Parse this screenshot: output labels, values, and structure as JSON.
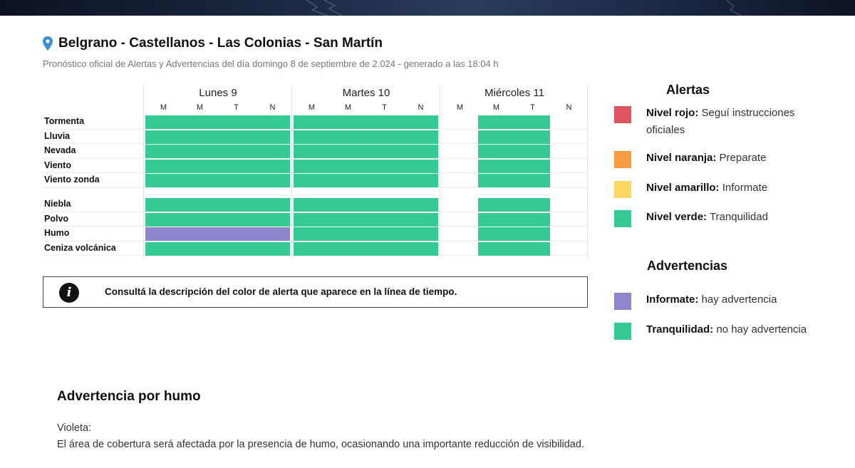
{
  "header": {
    "title": "Belgrano - Castellanos - Las Colonias - San Martín",
    "subtitle": "Pronóstico oficial de Alertas y Advertencias del día domingo 8 de septiembre de 2.024 - generado a las 18:04 h"
  },
  "colors": {
    "rojo": "#dd5463",
    "naranja": "#f59b42",
    "amarillo": "#fdd663",
    "verde": "#35c994",
    "violeta": "#8d86cb"
  },
  "timeline": {
    "days": [
      {
        "label": "Lunes 9",
        "slots": [
          "M",
          "M",
          "T",
          "N"
        ]
      },
      {
        "label": "Martes 10",
        "slots": [
          "M",
          "M",
          "T",
          "N"
        ]
      },
      {
        "label": "Miércoles 11",
        "slots": [
          "M",
          "M",
          "T",
          "N"
        ]
      }
    ],
    "alert_rows": [
      {
        "label": "Tormenta",
        "cells": [
          "verde",
          "verde",
          "verde",
          "verde",
          "verde",
          "verde",
          "verde",
          "verde",
          null,
          "verde",
          "verde",
          null
        ]
      },
      {
        "label": "Lluvia",
        "cells": [
          "verde",
          "verde",
          "verde",
          "verde",
          "verde",
          "verde",
          "verde",
          "verde",
          null,
          "verde",
          "verde",
          null
        ]
      },
      {
        "label": "Nevada",
        "cells": [
          "verde",
          "verde",
          "verde",
          "verde",
          "verde",
          "verde",
          "verde",
          "verde",
          null,
          "verde",
          "verde",
          null
        ]
      },
      {
        "label": "Viento",
        "cells": [
          "verde",
          "verde",
          "verde",
          "verde",
          "verde",
          "verde",
          "verde",
          "verde",
          null,
          "verde",
          "verde",
          null
        ]
      },
      {
        "label": "Viento zonda",
        "cells": [
          "verde",
          "verde",
          "verde",
          "verde",
          "verde",
          "verde",
          "verde",
          "verde",
          null,
          "verde",
          "verde",
          null
        ]
      }
    ],
    "warning_rows": [
      {
        "label": "Niebla",
        "cells": [
          "verde",
          "verde",
          "verde",
          "verde",
          "verde",
          "verde",
          "verde",
          "verde",
          null,
          "verde",
          "verde",
          null
        ]
      },
      {
        "label": "Polvo",
        "cells": [
          "verde",
          "verde",
          "verde",
          "verde",
          "verde",
          "verde",
          "verde",
          "verde",
          null,
          "verde",
          "verde",
          null
        ]
      },
      {
        "label": "Humo",
        "cells": [
          "violeta",
          "violeta",
          "violeta",
          "violeta",
          "verde",
          "verde",
          "verde",
          "verde",
          null,
          "verde",
          "verde",
          null
        ]
      },
      {
        "label": "Ceniza volcánica",
        "cells": [
          "verde",
          "verde",
          "verde",
          "verde",
          "verde",
          "verde",
          "verde",
          "verde",
          null,
          "verde",
          "verde",
          null
        ]
      }
    ]
  },
  "info": {
    "text": "Consultá la descripción del color de alerta que aparece en la línea de tiempo."
  },
  "legend": {
    "alertas_title": "Alertas",
    "alertas": [
      {
        "name": "Nivel rojo:",
        "desc": "Seguí instrucciones oficiales",
        "color": "#dd5463"
      },
      {
        "name": "Nivel naranja:",
        "desc": "Preparate",
        "color": "#f59b42"
      },
      {
        "name": "Nivel amarillo:",
        "desc": "Informate",
        "color": "#fdd663"
      },
      {
        "name": "Nivel verde:",
        "desc": "Tranquilidad",
        "color": "#35c994"
      }
    ],
    "advertencias_title": "Advertencias",
    "advertencias": [
      {
        "name": "Informate:",
        "desc": "hay advertencia",
        "color": "#8d86cb"
      },
      {
        "name": "Tranquilidad:",
        "desc": "no hay advertencia",
        "color": "#35c994"
      }
    ]
  },
  "warning": {
    "title": "Advertencia por humo",
    "color_label": "Violeta:",
    "description": "El área de cobertura será afectada por la presencia de humo, ocasionando una importante reducción de visibilidad."
  }
}
